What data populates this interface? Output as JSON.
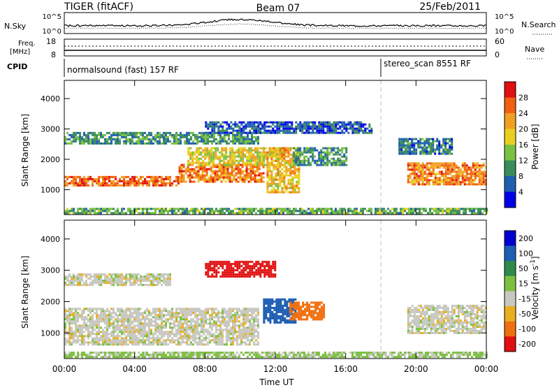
{
  "header": {
    "radar": "TIGER (fitACF)",
    "beam": "Beam 07",
    "date": "25/Feb/2011"
  },
  "noise_panel": {
    "left_label": "N.Sky",
    "right_label": "N.Search",
    "left_ticks": [
      "10^5",
      "10^0"
    ],
    "right_ticks": [
      "10^5",
      "10^0"
    ]
  },
  "freq_panel": {
    "left_label_line1": "Freq.",
    "left_label_line2": "[MHz]",
    "right_label": "Nave",
    "left_ticks": [
      "18",
      "8"
    ],
    "right_ticks": [
      "60",
      "0"
    ]
  },
  "cpid_panel": {
    "label": "CPID",
    "segments": [
      {
        "name": "normalsound (fast) 157 RF",
        "start_hour": 0
      },
      {
        "name": "stereo_scan 8551 RF",
        "start_hour": 18
      }
    ]
  },
  "x_axis": {
    "label": "Time UT",
    "ticks": [
      "00:00",
      "04:00",
      "08:00",
      "12:00",
      "16:00",
      "20:00",
      "00:00"
    ],
    "range_hours": [
      0,
      24
    ]
  },
  "y_axis": {
    "label": "Slant Range [km]",
    "ticks": [
      "1000",
      "2000",
      "3000",
      "4000"
    ],
    "range_km": [
      180,
      4600
    ]
  },
  "power_colorbar": {
    "label": "Power [dB]",
    "ticks": [
      "4",
      "8",
      "12",
      "16",
      "20",
      "24",
      "28"
    ],
    "colors": [
      "#0000e6",
      "#1f5fb0",
      "#3a8c5a",
      "#7ac043",
      "#e8d020",
      "#f0a020",
      "#f06010",
      "#e01010"
    ]
  },
  "velocity_colorbar": {
    "label_main": "Velocity [m s",
    "label_sup": "-1",
    "label_end": "]",
    "ticks": [
      "200",
      "100",
      "50",
      "15",
      "-15",
      "-50",
      "-100",
      "-200"
    ],
    "colors": [
      "#0000d0",
      "#1e5fb4",
      "#2e8a4a",
      "#7cc040",
      "#c8c8c0",
      "#e8b020",
      "#f07010",
      "#e01010"
    ]
  },
  "chart_data": {
    "type": "heatmap",
    "panels": [
      {
        "name": "power",
        "unit": "dB",
        "regions": [
          {
            "t0": 0.0,
            "t1": 6.5,
            "r0": 1150,
            "r1": 1450,
            "value": 26
          },
          {
            "t0": 6.5,
            "t1": 11.3,
            "r0": 1250,
            "r1": 1850,
            "value": 24
          },
          {
            "t0": 0.0,
            "t1": 11.0,
            "r0": 2500,
            "r1": 2900,
            "value": 10
          },
          {
            "t0": 7.0,
            "t1": 12.5,
            "r0": 1800,
            "r1": 2400,
            "value": 18
          },
          {
            "t0": 11.5,
            "t1": 13.3,
            "r0": 900,
            "r1": 2400,
            "value": 20
          },
          {
            "t0": 13.0,
            "t1": 16.0,
            "r0": 1800,
            "r1": 2400,
            "value": 10
          },
          {
            "t0": 8.0,
            "t1": 17.5,
            "r0": 2900,
            "r1": 3250,
            "value": 6
          },
          {
            "t0": 19.5,
            "t1": 24.0,
            "r0": 1200,
            "r1": 1900,
            "value": 24
          },
          {
            "t0": 19.0,
            "t1": 22.0,
            "r0": 2200,
            "r1": 2700,
            "value": 8
          },
          {
            "t0": 0.0,
            "t1": 24.0,
            "r0": 200,
            "r1": 400,
            "value": 12
          }
        ]
      },
      {
        "name": "velocity",
        "unit": "m s-1",
        "regions": [
          {
            "t0": 0.0,
            "t1": 11.0,
            "r0": 600,
            "r1": 1800,
            "value": 0
          },
          {
            "t0": 0.0,
            "t1": 6.0,
            "r0": 2500,
            "r1": 2900,
            "value": 0
          },
          {
            "t0": 8.0,
            "t1": 12.0,
            "r0": 2800,
            "r1": 3300,
            "value": -150
          },
          {
            "t0": 11.3,
            "t1": 13.2,
            "r0": 1300,
            "r1": 2100,
            "value": 150
          },
          {
            "t0": 12.8,
            "t1": 14.8,
            "r0": 1400,
            "r1": 2000,
            "value": -70
          },
          {
            "t0": 19.5,
            "t1": 24.0,
            "r0": 1000,
            "r1": 1900,
            "value": 0
          },
          {
            "t0": 0.0,
            "t1": 24.0,
            "r0": 200,
            "r1": 400,
            "value": 20
          }
        ]
      }
    ]
  }
}
